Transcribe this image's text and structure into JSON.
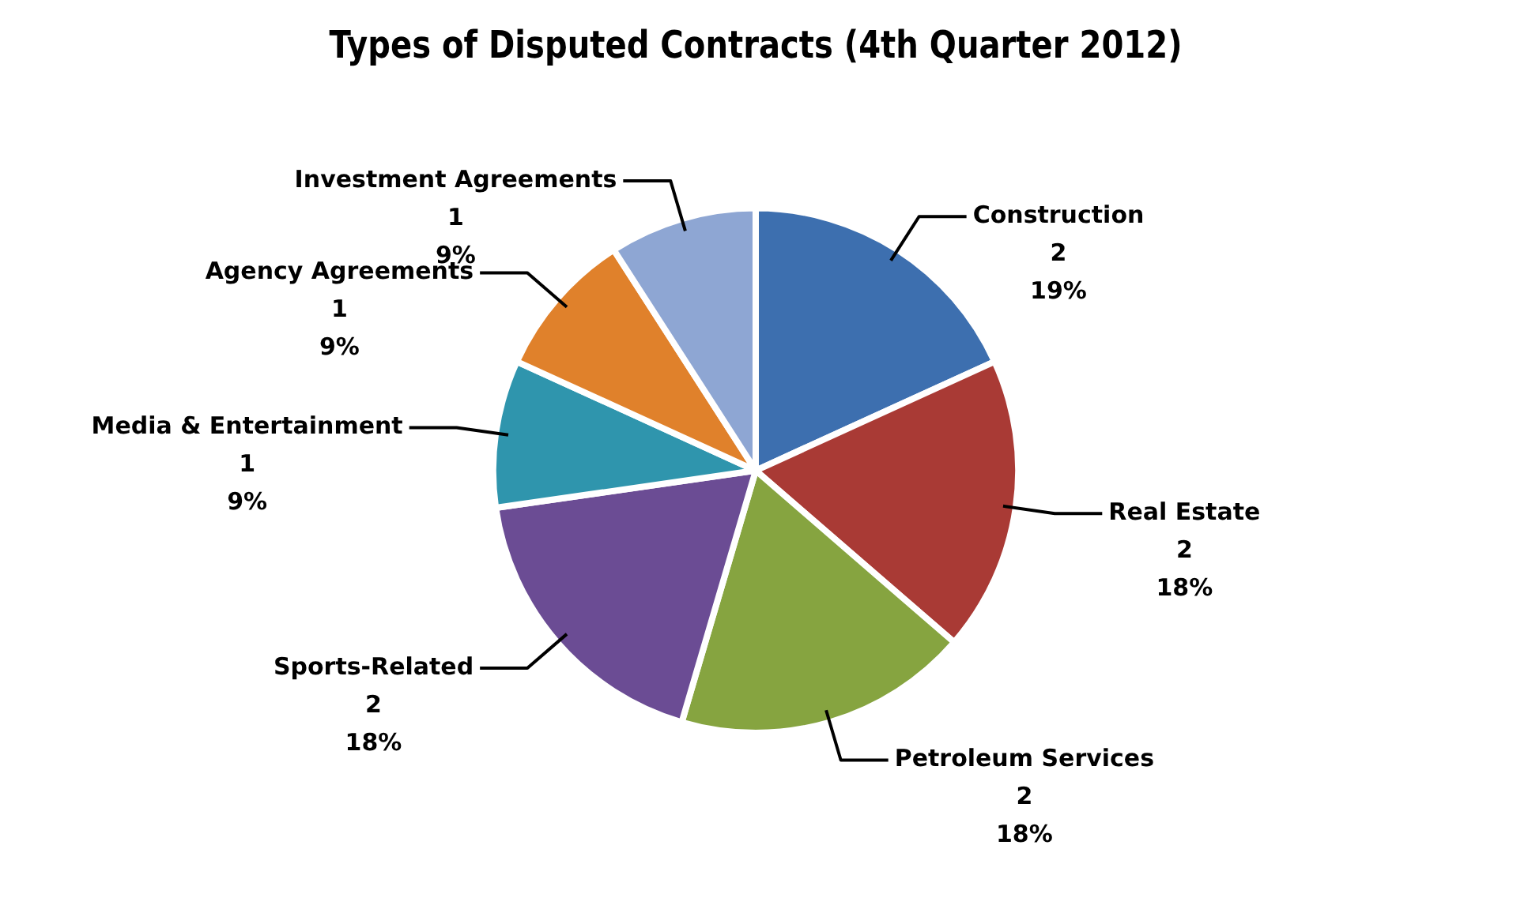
{
  "chart_data": {
    "type": "pie",
    "title": "Types of Disputed Contracts (4th Quarter 2012)",
    "categories": [
      "Construction",
      "Real Estate",
      "Petroleum Services",
      "Sports-Related",
      "Media & Entertainment",
      "Agency Agreements",
      "Investment Agreements"
    ],
    "values": [
      2,
      2,
      2,
      2,
      1,
      1,
      1
    ],
    "value_labels": [
      "2\n19%",
      "2\n18%",
      "2\n18%",
      "2\n18%",
      "1\n9%",
      "1\n9%",
      "1\n9%"
    ],
    "colors": [
      "#3d6faf",
      "#a93a35",
      "#86a440",
      "#6b4c94",
      "#2f95ad",
      "#e0812b",
      "#8ea6d3"
    ],
    "legend": false
  }
}
